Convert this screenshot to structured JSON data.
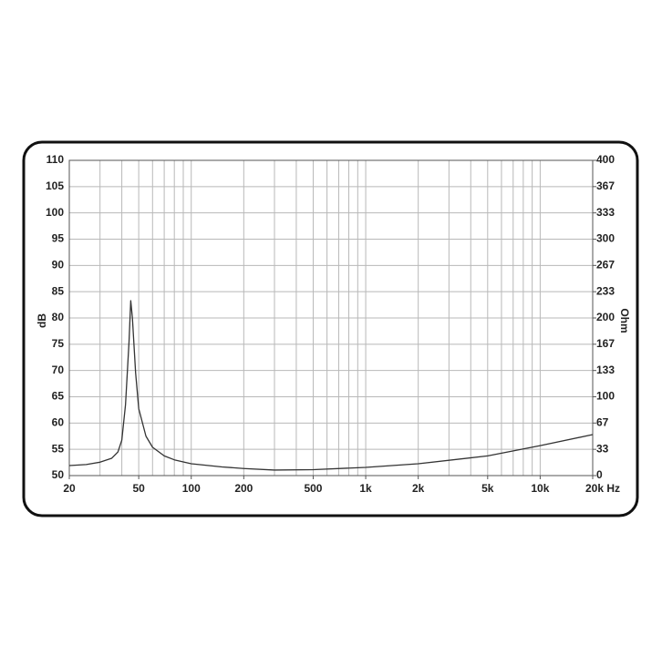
{
  "chart_data": {
    "type": "line",
    "ylabel": "dB",
    "y2label": "Ohm",
    "xscale": "log",
    "xlim": [
      20,
      20000
    ],
    "xticks": [
      20,
      50,
      100,
      200,
      500,
      {
        "value": 1000,
        "label": "1k"
      },
      {
        "value": 2000,
        "label": "2k"
      },
      {
        "value": 5000,
        "label": "5k"
      },
      {
        "value": 10000,
        "label": "10k"
      },
      {
        "value": 20000,
        "label": "20k Hz"
      }
    ],
    "xgrid": [
      20,
      30,
      40,
      50,
      60,
      70,
      80,
      90,
      100,
      200,
      300,
      400,
      500,
      600,
      700,
      800,
      900,
      1000,
      2000,
      3000,
      4000,
      5000,
      6000,
      7000,
      8000,
      9000,
      10000,
      20000
    ],
    "ylim": [
      50,
      110
    ],
    "yticks": [
      50,
      55,
      60,
      65,
      70,
      75,
      80,
      85,
      90,
      95,
      100,
      105,
      110
    ],
    "y2lim": [
      0,
      400
    ],
    "y2ticks": [
      0,
      {
        "value": 33.33,
        "label": "33"
      },
      {
        "value": 66.67,
        "label": "67"
      },
      100,
      {
        "value": 133.33,
        "label": "133"
      },
      {
        "value": 166.67,
        "label": "167"
      },
      200,
      {
        "value": 233.33,
        "label": "233"
      },
      {
        "value": 266.67,
        "label": "267"
      },
      300,
      {
        "value": 333.33,
        "label": "333"
      },
      {
        "value": 366.67,
        "label": "367"
      },
      400
    ],
    "grid": true,
    "x": [
      20,
      25,
      30,
      35,
      38,
      40,
      42,
      44,
      45,
      46,
      48,
      50,
      55,
      60,
      70,
      80,
      100,
      150,
      200,
      300,
      500,
      1000,
      2000,
      5000,
      10000,
      20000
    ],
    "series": [
      {
        "color": "#333333",
        "axis": "y2",
        "values": [
          12.7,
          14,
          17,
          22,
          30,
          45,
          90,
          170,
          222,
          200,
          130,
          85,
          50,
          36,
          25,
          20,
          15,
          11,
          9,
          7,
          7.5,
          10.4,
          15,
          25,
          38,
          52
        ]
      }
    ]
  }
}
